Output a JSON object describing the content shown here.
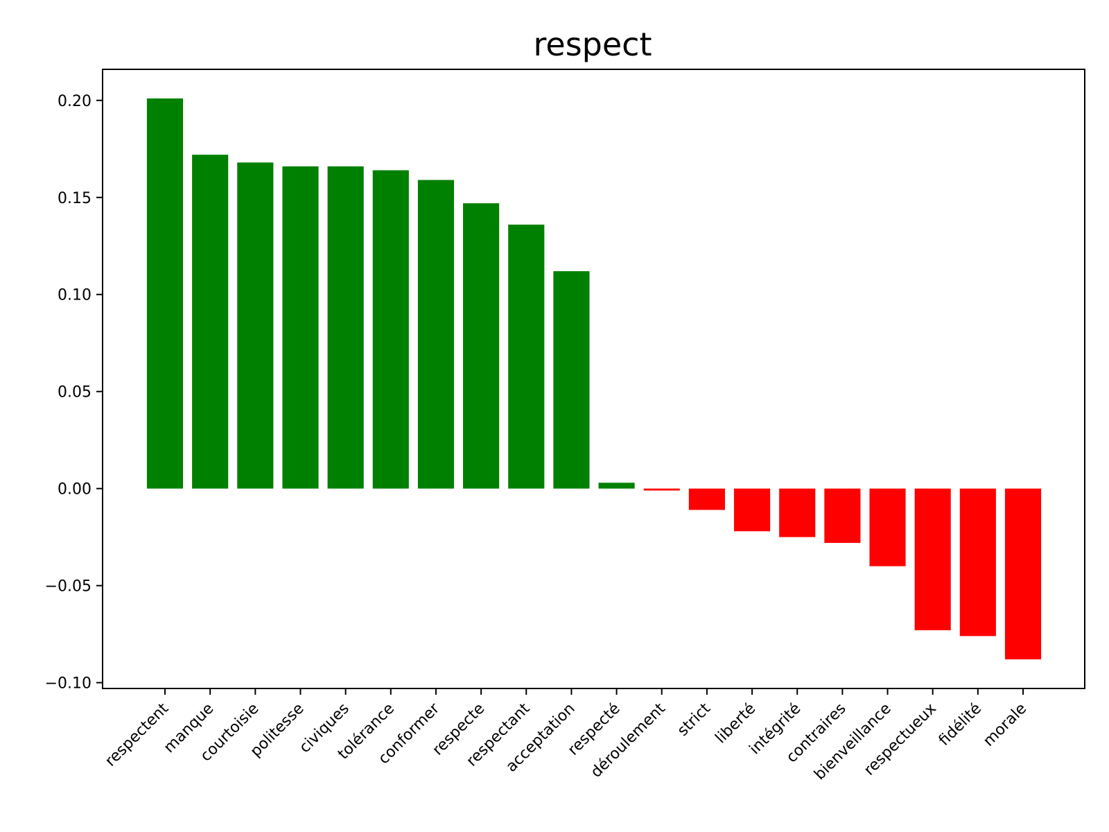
{
  "chart_data": {
    "type": "bar",
    "title": "respect",
    "xlabel": "",
    "ylabel": "",
    "ylim": [
      -0.103,
      0.216
    ],
    "yticks": [
      -0.1,
      -0.05,
      0.0,
      0.05,
      0.1,
      0.15,
      0.2
    ],
    "ytick_labels": [
      "−0.10",
      "−0.05",
      "0.00",
      "0.05",
      "0.10",
      "0.15",
      "0.20"
    ],
    "grid": false,
    "categories": [
      "respectent",
      "manque",
      "courtoisie",
      "politesse",
      "civiques",
      "tolérance",
      "conformer",
      "respecte",
      "respectant",
      "acceptation",
      "respecté",
      "déroulement",
      "strict",
      "liberté",
      "intégrité",
      "contraires",
      "bienveillance",
      "respectueux",
      "fidélité",
      "morale"
    ],
    "values": [
      0.201,
      0.172,
      0.168,
      0.166,
      0.166,
      0.164,
      0.159,
      0.147,
      0.136,
      0.112,
      0.003,
      -0.001,
      -0.011,
      -0.022,
      -0.025,
      -0.028,
      -0.04,
      -0.073,
      -0.076,
      -0.088
    ],
    "colors": {
      "positive": "#008000",
      "negative": "#ff0000"
    }
  }
}
